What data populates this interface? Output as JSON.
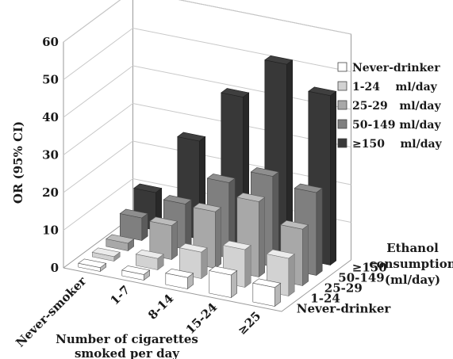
{
  "chart_data": {
    "type": "bar3d",
    "ylabel": "OR (95% CI)",
    "xlabel_lines": [
      "Number of cigarettes",
      "smoked per day"
    ],
    "zlabel_lines": [
      "Ethanol",
      "consumption",
      "(ml/day)"
    ],
    "ylim": [
      0,
      60
    ],
    "yticks": [
      "0",
      "10",
      "20",
      "30",
      "40",
      "50",
      "60"
    ],
    "x_categories": [
      "Never-smoker",
      "1-7",
      "8-14",
      "15-24",
      "≥25"
    ],
    "series": [
      {
        "name": "Never-drinker",
        "legend_label": "Never-drinker",
        "depth_label": "Never-drinker",
        "color": "#ffffff",
        "values": [
          1.0,
          1.5,
          3.0,
          6.0,
          5.0
        ]
      },
      {
        "name": "1-24 ml/day",
        "legend_label": "1-24    ml/day",
        "depth_label": "1-24",
        "color": "#d2d2d2",
        "values": [
          1.2,
          3.0,
          7.0,
          10.0,
          10.0
        ]
      },
      {
        "name": "25-29 ml/day",
        "legend_label": "25-29   ml/day",
        "depth_label": "25-29",
        "color": "#a8a8a8",
        "values": [
          2.0,
          9.0,
          15.0,
          20.0,
          15.0
        ]
      },
      {
        "name": "50-149 ml/day",
        "legend_label": "50-149 ml/day",
        "depth_label": "50-149",
        "color": "#7f7f7f",
        "values": [
          6.0,
          12.0,
          20.0,
          24.0,
          22.0
        ]
      },
      {
        "name": "≥150 ml/day",
        "legend_label": "≥150    ml/day",
        "depth_label": "≥150",
        "color": "#383838",
        "values": [
          10.0,
          26.0,
          40.0,
          51.0,
          45.0
        ]
      }
    ],
    "legend_position": "right",
    "grid": true
  }
}
